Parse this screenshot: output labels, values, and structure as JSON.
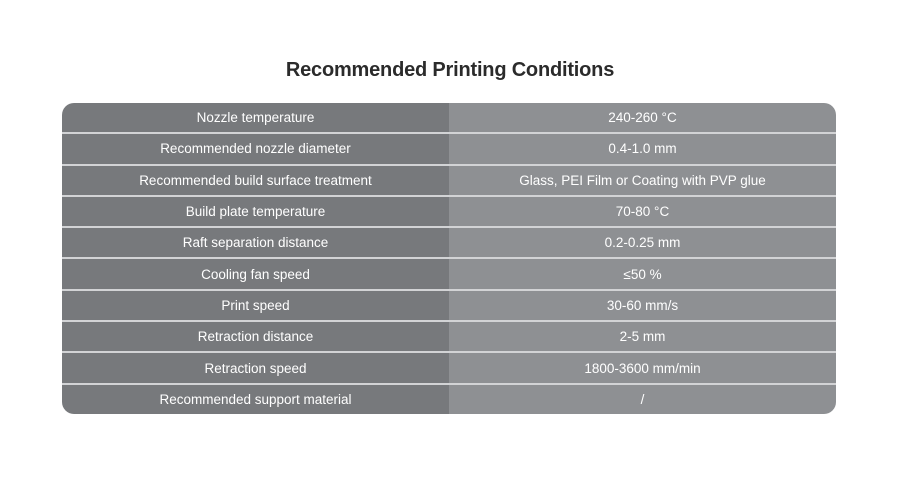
{
  "title": "Recommended Printing Conditions",
  "rows": [
    {
      "label": "Nozzle temperature",
      "value": "240-260 °C"
    },
    {
      "label": "Recommended nozzle diameter",
      "value": "0.4-1.0 mm"
    },
    {
      "label": "Recommended build surface treatment",
      "value": "Glass, PEI Film or Coating with PVP glue"
    },
    {
      "label": "Build plate temperature",
      "value": "70-80 °C"
    },
    {
      "label": "Raft separation distance",
      "value": "0.2-0.25 mm"
    },
    {
      "label": "Cooling fan speed",
      "value": "≤50 %"
    },
    {
      "label": "Print speed",
      "value": "30-60 mm/s"
    },
    {
      "label": "Retraction distance",
      "value": "2-5 mm"
    },
    {
      "label": "Retraction speed",
      "value": "1800-3600 mm/min"
    },
    {
      "label": "Recommended support material",
      "value": "/"
    }
  ],
  "colors": {
    "label_column": "#77797c",
    "value_column": "#8e9093",
    "divider": "#d2d3d5",
    "title": "#2b2b2b"
  }
}
